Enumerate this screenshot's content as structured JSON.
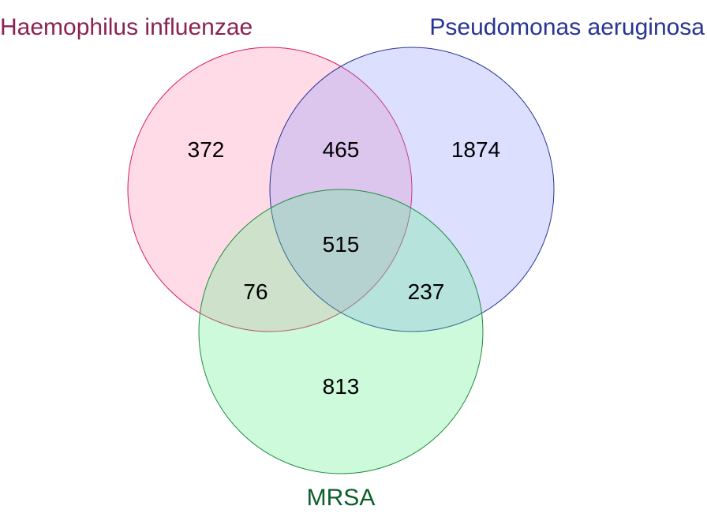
{
  "sets": {
    "haemophilus": {
      "label": "Haemophilus influenzae",
      "fill": "#ff88b0",
      "stroke": "#d81b60",
      "label_color": "#8b2252"
    },
    "pseudomonas": {
      "label": "Pseudomonas aeruginosa",
      "fill": "#8f96ff",
      "stroke": "#283593",
      "label_color": "#283593"
    },
    "mrsa": {
      "label": "MRSA",
      "fill": "#5cf08c",
      "stroke": "#1e8e3e",
      "label_color": "#0b5e2a"
    }
  },
  "regions": {
    "haemophilus_only": "372",
    "haemophilus_pseudomonas": "465",
    "pseudomonas_only": "1874",
    "all_three": "515",
    "haemophilus_mrsa": "76",
    "pseudomonas_mrsa": "237",
    "mrsa_only": "813"
  }
}
